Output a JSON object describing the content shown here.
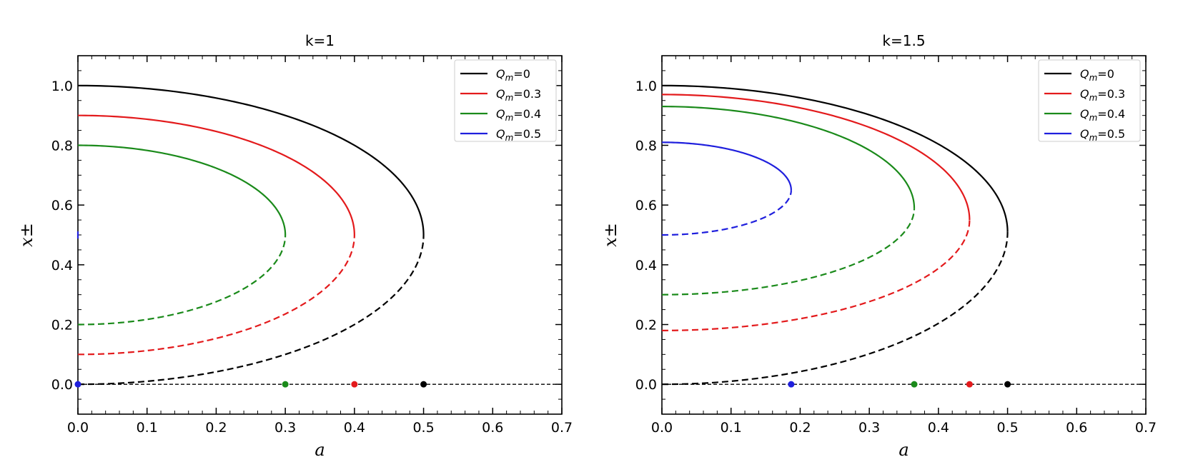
{
  "chart_data": [
    {
      "type": "line",
      "title": "k=1",
      "xlabel": "a",
      "ylabel": "x±",
      "xlim": [
        0,
        0.7
      ],
      "ylim": [
        -0.1,
        1.1
      ],
      "xticks": [
        0.0,
        0.1,
        0.2,
        0.3,
        0.4,
        0.5,
        0.6,
        0.7
      ],
      "xtick_labels": [
        "0.0",
        "0.1",
        "0.2",
        "0.3",
        "0.4",
        "0.5",
        "0.6",
        "0.7"
      ],
      "yticks": [
        0.0,
        0.2,
        0.4,
        0.6,
        0.8,
        1.0
      ],
      "ytick_labels": [
        "0.0",
        "0.2",
        "0.4",
        "0.6",
        "0.8",
        "1.0"
      ],
      "legend_position": "top-right",
      "series": [
        {
          "name": "Qm=0",
          "legend_main": "Q",
          "legend_sub": "m",
          "legend_value": "=0",
          "color": "#000000",
          "x_plus_at_zero": 1.0,
          "x_minus_at_zero": 0.0,
          "a_max": 0.5,
          "x_at_max": 0.5
        },
        {
          "name": "Qm=0.3",
          "legend_main": "Q",
          "legend_sub": "m",
          "legend_value": "=0.3",
          "color": "#e31a1c",
          "x_plus_at_zero": 0.9,
          "x_minus_at_zero": 0.1,
          "a_max": 0.4,
          "x_at_max": 0.5
        },
        {
          "name": "Qm=0.4",
          "legend_main": "Q",
          "legend_sub": "m",
          "legend_value": "=0.4",
          "color": "#1a8a1a",
          "x_plus_at_zero": 0.8,
          "x_minus_at_zero": 0.2,
          "a_max": 0.3,
          "x_at_max": 0.5
        },
        {
          "name": "Qm=0.5",
          "legend_main": "Q",
          "legend_sub": "m",
          "legend_value": "=0.5",
          "color": "#1f1fdd",
          "x_plus_at_zero": 0.5,
          "x_minus_at_zero": 0.5,
          "a_max": 0.0,
          "x_at_max": 0.5
        }
      ]
    },
    {
      "type": "line",
      "title": "k=1.5",
      "xlabel": "a",
      "ylabel": "x±",
      "xlim": [
        0,
        0.7
      ],
      "ylim": [
        -0.1,
        1.1
      ],
      "xticks": [
        0.0,
        0.1,
        0.2,
        0.3,
        0.4,
        0.5,
        0.6,
        0.7
      ],
      "xtick_labels": [
        "0.0",
        "0.1",
        "0.2",
        "0.3",
        "0.4",
        "0.5",
        "0.6",
        "0.7"
      ],
      "yticks": [
        0.0,
        0.2,
        0.4,
        0.6,
        0.8,
        1.0
      ],
      "ytick_labels": [
        "0.0",
        "0.2",
        "0.4",
        "0.6",
        "0.8",
        "1.0"
      ],
      "legend_position": "top-right",
      "series": [
        {
          "name": "Qm=0",
          "legend_main": "Q",
          "legend_sub": "m",
          "legend_value": "=0",
          "color": "#000000",
          "x_plus_at_zero": 1.0,
          "x_minus_at_zero": 0.0,
          "a_max": 0.5,
          "x_at_max": 0.51
        },
        {
          "name": "Qm=0.3",
          "legend_main": "Q",
          "legend_sub": "m",
          "legend_value": "=0.3",
          "color": "#e31a1c",
          "x_plus_at_zero": 0.97,
          "x_minus_at_zero": 0.18,
          "a_max": 0.445,
          "x_at_max": 0.55
        },
        {
          "name": "Qm=0.4",
          "legend_main": "Q",
          "legend_sub": "m",
          "legend_value": "=0.4",
          "color": "#1a8a1a",
          "x_plus_at_zero": 0.93,
          "x_minus_at_zero": 0.3,
          "a_max": 0.365,
          "x_at_max": 0.59
        },
        {
          "name": "Qm=0.5",
          "legend_main": "Q",
          "legend_sub": "m",
          "legend_value": "=0.5",
          "color": "#1f1fdd",
          "x_plus_at_zero": 0.81,
          "x_minus_at_zero": 0.5,
          "a_max": 0.187,
          "x_at_max": 0.65
        }
      ]
    }
  ]
}
